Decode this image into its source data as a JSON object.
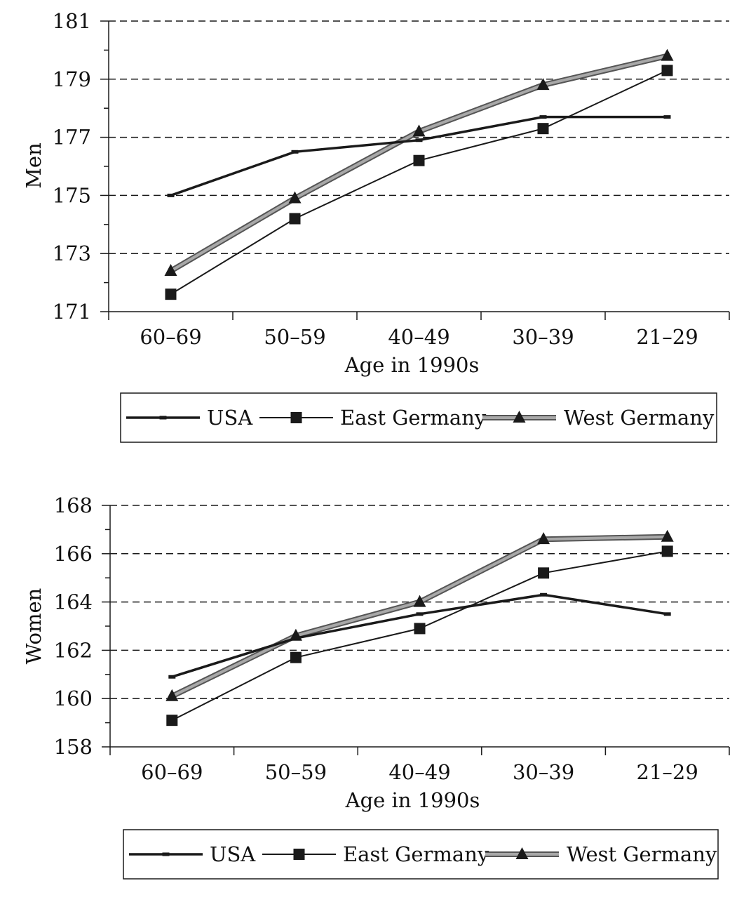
{
  "chart_data": [
    {
      "type": "line",
      "categories": [
        "60–69",
        "50–59",
        "40–49",
        "30–39",
        "21–29"
      ],
      "xlabel": "Age in 1990s",
      "ylabel": "Men",
      "ylim": [
        171,
        181
      ],
      "yticks": [
        171,
        173,
        175,
        177,
        179,
        181
      ],
      "grid": "dashed horizontal lines at labeled ticks",
      "legend": "bottom, below x-axis label",
      "series": [
        {
          "name": "USA",
          "marker": "dash",
          "color": "#1a1a1a",
          "values": [
            175.0,
            176.5,
            176.9,
            177.7,
            177.7
          ]
        },
        {
          "name": "East Germany",
          "marker": "square",
          "color": "#1a1a1a",
          "values": [
            171.6,
            174.2,
            176.2,
            177.3,
            179.3
          ]
        },
        {
          "name": "West Germany",
          "marker": "triangle",
          "color": "#7a7a7a",
          "values": [
            172.4,
            174.9,
            177.2,
            178.8,
            179.8
          ]
        }
      ]
    },
    {
      "type": "line",
      "categories": [
        "60–69",
        "50–59",
        "40–49",
        "30–39",
        "21–29"
      ],
      "xlabel": "Age in 1990s",
      "ylabel": "Women",
      "ylim": [
        158,
        168
      ],
      "yticks": [
        158,
        160,
        162,
        164,
        166,
        168
      ],
      "grid": "dashed horizontal lines at labeled ticks",
      "legend": "bottom, below x-axis label",
      "series": [
        {
          "name": "USA",
          "marker": "dash",
          "color": "#1a1a1a",
          "values": [
            160.9,
            162.5,
            163.5,
            164.3,
            163.5
          ]
        },
        {
          "name": "East Germany",
          "marker": "square",
          "color": "#1a1a1a",
          "values": [
            159.1,
            161.7,
            162.9,
            165.2,
            166.1
          ]
        },
        {
          "name": "West Germany",
          "marker": "triangle",
          "color": "#7a7a7a",
          "values": [
            160.1,
            162.6,
            164.0,
            166.6,
            166.7
          ]
        }
      ]
    }
  ]
}
